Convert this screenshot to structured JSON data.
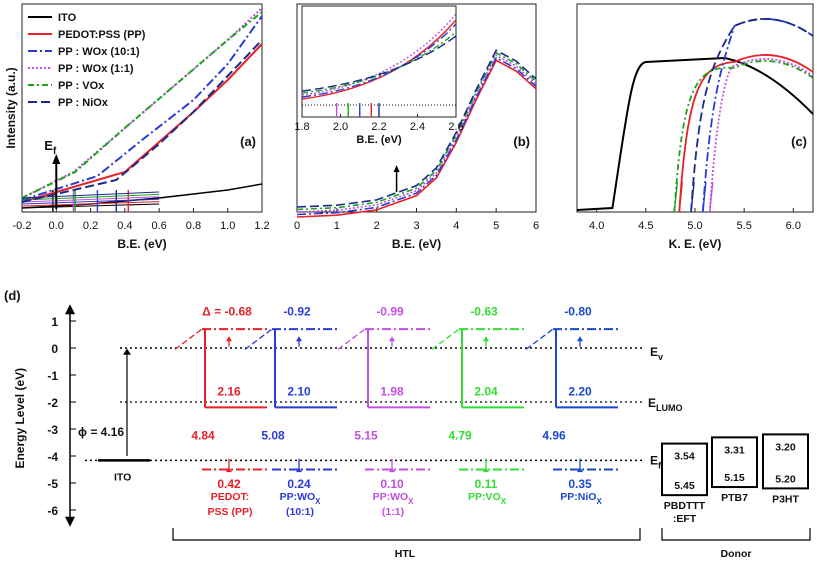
{
  "chart_data": [
    {
      "panel": "(a)",
      "type": "line",
      "ylabel": "Intensity (a.u.)",
      "xlabel": "B.E. (eV)",
      "xticks": [
        "-0.2",
        "0.0",
        "0.2",
        "0.4",
        "0.6",
        "0.8",
        "1.0",
        "1.2"
      ],
      "xlim": [
        -0.2,
        1.2
      ],
      "fermi_label": "E",
      "fermi_sub": "f",
      "colors": [
        "#000000",
        "#e8202a",
        "#2a3bd8",
        "#c050e0",
        "#1aa51a",
        "#1a2a8a"
      ],
      "legend": [
        "ITO",
        "PEDOT:PSS (PP)",
        "PP : WOx (10:1)",
        "PP : WOx (1:1)",
        "PP : VOx",
        "PP : NiOx"
      ],
      "onsets_ev": [
        -0.02,
        0.42,
        0.24,
        0.1,
        0.11,
        0.35
      ],
      "series": [
        {
          "name": "ITO",
          "x": [
            -0.2,
            0.2,
            0.6,
            1.0,
            1.2
          ],
          "y": [
            0.02,
            0.04,
            0.07,
            0.11,
            0.14
          ]
        },
        {
          "name": "PEDOT:PSS (PP)",
          "x": [
            -0.2,
            0.4,
            0.6,
            0.8,
            1.0,
            1.2
          ],
          "y": [
            0.05,
            0.2,
            0.35,
            0.5,
            0.66,
            0.84
          ]
        },
        {
          "name": "PP : WOx (10:1)",
          "x": [
            -0.2,
            0.24,
            0.5,
            0.8,
            1.0,
            1.2
          ],
          "y": [
            0.06,
            0.18,
            0.36,
            0.56,
            0.74,
            0.98
          ]
        },
        {
          "name": "PP : WOx (1:1)",
          "x": [
            -0.2,
            0.1,
            0.4,
            0.7,
            1.0,
            1.2
          ],
          "y": [
            0.07,
            0.2,
            0.42,
            0.64,
            0.86,
            1.02
          ]
        },
        {
          "name": "PP : VOx",
          "x": [
            -0.2,
            0.11,
            0.4,
            0.7,
            1.0,
            1.2
          ],
          "y": [
            0.07,
            0.2,
            0.42,
            0.64,
            0.86,
            1.0
          ]
        },
        {
          "name": "PP : NiOx",
          "x": [
            -0.2,
            0.35,
            0.6,
            0.8,
            1.0,
            1.2
          ],
          "y": [
            0.05,
            0.16,
            0.34,
            0.5,
            0.68,
            0.86
          ]
        }
      ]
    },
    {
      "panel": "(b)",
      "type": "line",
      "xlabel": "B.E. (eV)",
      "xticks": [
        "0",
        "1",
        "2",
        "3",
        "4",
        "5",
        "6"
      ],
      "xlim": [
        0,
        6
      ],
      "inset": {
        "xlabel": "B.E. (eV)",
        "xticks": [
          "1.8",
          "2.0",
          "2.2",
          "2.4",
          "2.6"
        ],
        "xlim": [
          1.8,
          2.6
        ],
        "onsets_ev": [
          2.16,
          2.1,
          1.98,
          2.04,
          2.2
        ]
      },
      "curve": {
        "x": [
          0,
          1,
          2,
          2.5,
          3,
          3.5,
          4,
          4.5,
          5,
          5.5,
          6
        ],
        "y": [
          0,
          0.01,
          0.04,
          0.08,
          0.12,
          0.22,
          0.42,
          0.66,
          0.88,
          0.82,
          0.72
        ]
      }
    },
    {
      "panel": "(c)",
      "type": "line",
      "xlabel": "K. E. (eV)",
      "xticks": [
        "4.0",
        "4.5",
        "5.0",
        "5.5",
        "6.0"
      ],
      "xlim": [
        3.8,
        6.2
      ],
      "cutoffs_ev": [
        4.16,
        4.84,
        5.08,
        5.15,
        4.79,
        4.96
      ]
    },
    {
      "panel": "(d)",
      "type": "diagram",
      "ylabel": "Energy Level (eV)",
      "yticks": [
        "1",
        "0",
        "-1",
        "-2",
        "-3",
        "-4",
        "-5",
        "-6"
      ],
      "ylim": [
        -6.5,
        1.5
      ],
      "labels": {
        "ev": "E",
        "ev_sub": "v",
        "elumo": "E",
        "elumo_sub": "LUMO",
        "ef": "E",
        "ef_sub": "f",
        "phi": "ϕ = 4.16",
        "ito": "ITO",
        "htl": "HTL",
        "donor": "Donor"
      },
      "materials": [
        {
          "name1": "PEDOT:",
          "name2": "PSS (PP)",
          "sub": "",
          "color": "#e8202a",
          "delta": "Δ = -0.68",
          "wf": "4.84",
          "gap": "2.16",
          "offset": "0.42"
        },
        {
          "name1": "PP:WO",
          "name2": "(10:1)",
          "sub": "X",
          "color": "#2a3bd8",
          "delta": "-0.92",
          "wf": "5.08",
          "gap": "2.10",
          "offset": "0.24"
        },
        {
          "name1": "PP:WO",
          "name2": "(1:1)",
          "sub": "X",
          "color": "#c050e0",
          "delta": "-0.99",
          "wf": "5.15",
          "gap": "1.98",
          "offset": "0.10"
        },
        {
          "name1": "PP:VO",
          "name2": "",
          "sub": "X",
          "color": "#33dd33",
          "delta": "-0.63",
          "wf": "4.79",
          "gap": "2.04",
          "offset": "0.11"
        },
        {
          "name1": "PP:NiO",
          "name2": "",
          "sub": "X",
          "color": "#1a4acc",
          "delta": "-0.80",
          "wf": "4.96",
          "gap": "2.20",
          "offset": "0.35"
        }
      ],
      "donors": [
        {
          "name1": "PBDTTT",
          "name2": ":EFT",
          "lumo": "3.54",
          "homo": "5.45"
        },
        {
          "name1": "PTB7",
          "name2": "",
          "lumo": "3.31",
          "homo": "5.15"
        },
        {
          "name1": "P3HT",
          "name2": "",
          "lumo": "3.20",
          "homo": "5.20"
        }
      ]
    }
  ]
}
